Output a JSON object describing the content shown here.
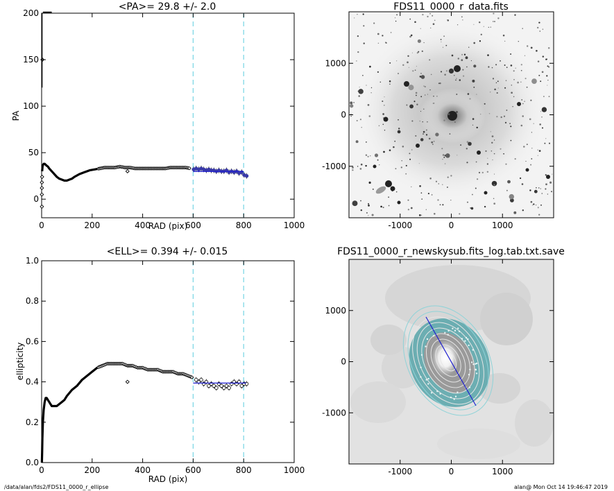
{
  "footer": {
    "path": "/data/alan/fds2/FDS11_0000_r_ellipse",
    "stamp": "alan@  Mon Oct 14 19:46:47 2019"
  },
  "colors": {
    "points": "#000000",
    "fit_points": "#3a3aa8",
    "fit_line": "#1f1fcf",
    "guide": "#7fd8e6",
    "isophote": "#e6e6e6",
    "annulus": "#5fa9ad"
  },
  "chart_data": [
    {
      "id": "pa",
      "type": "scatter",
      "title": "<PA>=  29.8 +/-   2.0",
      "xlabel": "RAD (pix)",
      "ylabel": "PA",
      "xlim": [
        0,
        1000
      ],
      "ylim": [
        -20,
        200
      ],
      "xticks": [
        "0",
        "200",
        "400",
        "600",
        "800",
        "1000"
      ],
      "yticks": [
        "0",
        "50",
        "100",
        "150",
        "200"
      ],
      "guides_x": [
        600,
        800
      ],
      "fit": {
        "x": [
          600,
          800
        ],
        "y": [
          29.8,
          29.8
        ]
      },
      "curve": {
        "x": [
          2,
          4,
          8,
          12,
          16,
          20,
          25,
          30,
          40,
          50,
          60,
          70,
          80,
          90,
          100,
          110,
          120,
          130,
          150,
          170,
          190,
          210,
          230,
          250,
          270,
          290,
          310,
          330,
          350,
          370,
          390,
          410,
          430,
          450,
          470,
          490,
          510,
          530,
          550,
          570,
          590
        ],
        "y": [
          30,
          36,
          38,
          38,
          37,
          36,
          35,
          33,
          30,
          27,
          24,
          22,
          21,
          20,
          20,
          21,
          22,
          24,
          27,
          29,
          31,
          32,
          33,
          34,
          34,
          34,
          35,
          34,
          34,
          33,
          33,
          33,
          33,
          33,
          33,
          33,
          34,
          34,
          34,
          34,
          33
        ]
      },
      "scatter": {
        "x": [
          1,
          1,
          1,
          1,
          2,
          3,
          340
        ],
        "y": [
          -8,
          5,
          12,
          18,
          24,
          150,
          30
        ]
      },
      "fit_points": {
        "x": [
          602,
          612,
          622,
          632,
          642,
          652,
          662,
          672,
          682,
          692,
          702,
          712,
          722,
          732,
          742,
          752,
          762,
          772,
          782,
          792,
          802,
          812
        ],
        "y": [
          32,
          33,
          32,
          33,
          32,
          31,
          32,
          31,
          31,
          30,
          31,
          30,
          30,
          31,
          29,
          30,
          29,
          30,
          28,
          29,
          26,
          25
        ]
      },
      "top_cluster": {
        "x": [
          5,
          10,
          15,
          20,
          25,
          30,
          35,
          40
        ],
        "y": [
          200,
          200,
          200,
          200,
          200,
          200,
          200,
          200
        ]
      },
      "spike": {
        "x": [
          1.5,
          1.5
        ],
        "y": [
          120,
          200
        ]
      }
    },
    {
      "id": "ell",
      "type": "scatter",
      "title": "<ELL>= 0.394 +/-  0.015",
      "xlabel": "RAD (pix)",
      "ylabel": "ellipticity",
      "xlim": [
        0,
        1000
      ],
      "ylim": [
        0,
        1.0
      ],
      "xticks": [
        "0",
        "200",
        "400",
        "600",
        "800",
        "1000"
      ],
      "yticks": [
        "0.0",
        "0.2",
        "0.4",
        "0.6",
        "0.8",
        "1.0"
      ],
      "guides_x": [
        600,
        800
      ],
      "fit": {
        "x": [
          600,
          810
        ],
        "y": [
          0.394,
          0.394
        ]
      },
      "curve": {
        "x": [
          1,
          2,
          3,
          5,
          8,
          12,
          16,
          20,
          25,
          30,
          35,
          40,
          50,
          60,
          70,
          80,
          90,
          100,
          120,
          140,
          160,
          180,
          200,
          220,
          240,
          260,
          280,
          300,
          320,
          340,
          360,
          380,
          400,
          420,
          440,
          460,
          480,
          500,
          520,
          540,
          560,
          580,
          600
        ],
        "y": [
          0.0,
          0.05,
          0.12,
          0.2,
          0.26,
          0.3,
          0.32,
          0.32,
          0.31,
          0.3,
          0.29,
          0.28,
          0.28,
          0.28,
          0.29,
          0.3,
          0.31,
          0.33,
          0.36,
          0.38,
          0.41,
          0.43,
          0.45,
          0.47,
          0.48,
          0.49,
          0.49,
          0.49,
          0.49,
          0.48,
          0.48,
          0.47,
          0.47,
          0.46,
          0.46,
          0.46,
          0.45,
          0.45,
          0.45,
          0.44,
          0.44,
          0.43,
          0.42
        ]
      },
      "scatter": {
        "x": [
          340
        ],
        "y": [
          0.4
        ]
      },
      "fit_points": {
        "x": [
          612,
          622,
          632,
          642,
          652,
          662,
          672,
          682,
          692,
          702,
          712,
          722,
          732,
          742,
          752,
          762,
          772,
          782,
          792,
          802,
          812
        ],
        "y": [
          0.41,
          0.4,
          0.41,
          0.39,
          0.4,
          0.38,
          0.39,
          0.38,
          0.37,
          0.39,
          0.38,
          0.37,
          0.38,
          0.37,
          0.39,
          0.4,
          0.39,
          0.4,
          0.38,
          0.39,
          0.39
        ]
      }
    },
    {
      "id": "img1",
      "type": "image",
      "title": "FDS11_0000_r_data.fits",
      "xlim": [
        -2000,
        2000
      ],
      "ylim": [
        -2000,
        2000
      ],
      "xticks": [
        "-1000",
        "0",
        "1000"
      ],
      "yticks": [
        "-1000",
        "0",
        "1000"
      ]
    },
    {
      "id": "img2",
      "type": "image",
      "title": "FDS11_0000_r_newskysub.fits_log.tab.txt.save",
      "xlim": [
        -2000,
        2000
      ],
      "ylim": [
        -2000,
        2000
      ],
      "xticks": [
        "-1000",
        "0",
        "1000"
      ],
      "yticks": [
        "-1000",
        "0",
        "1000"
      ]
    }
  ]
}
